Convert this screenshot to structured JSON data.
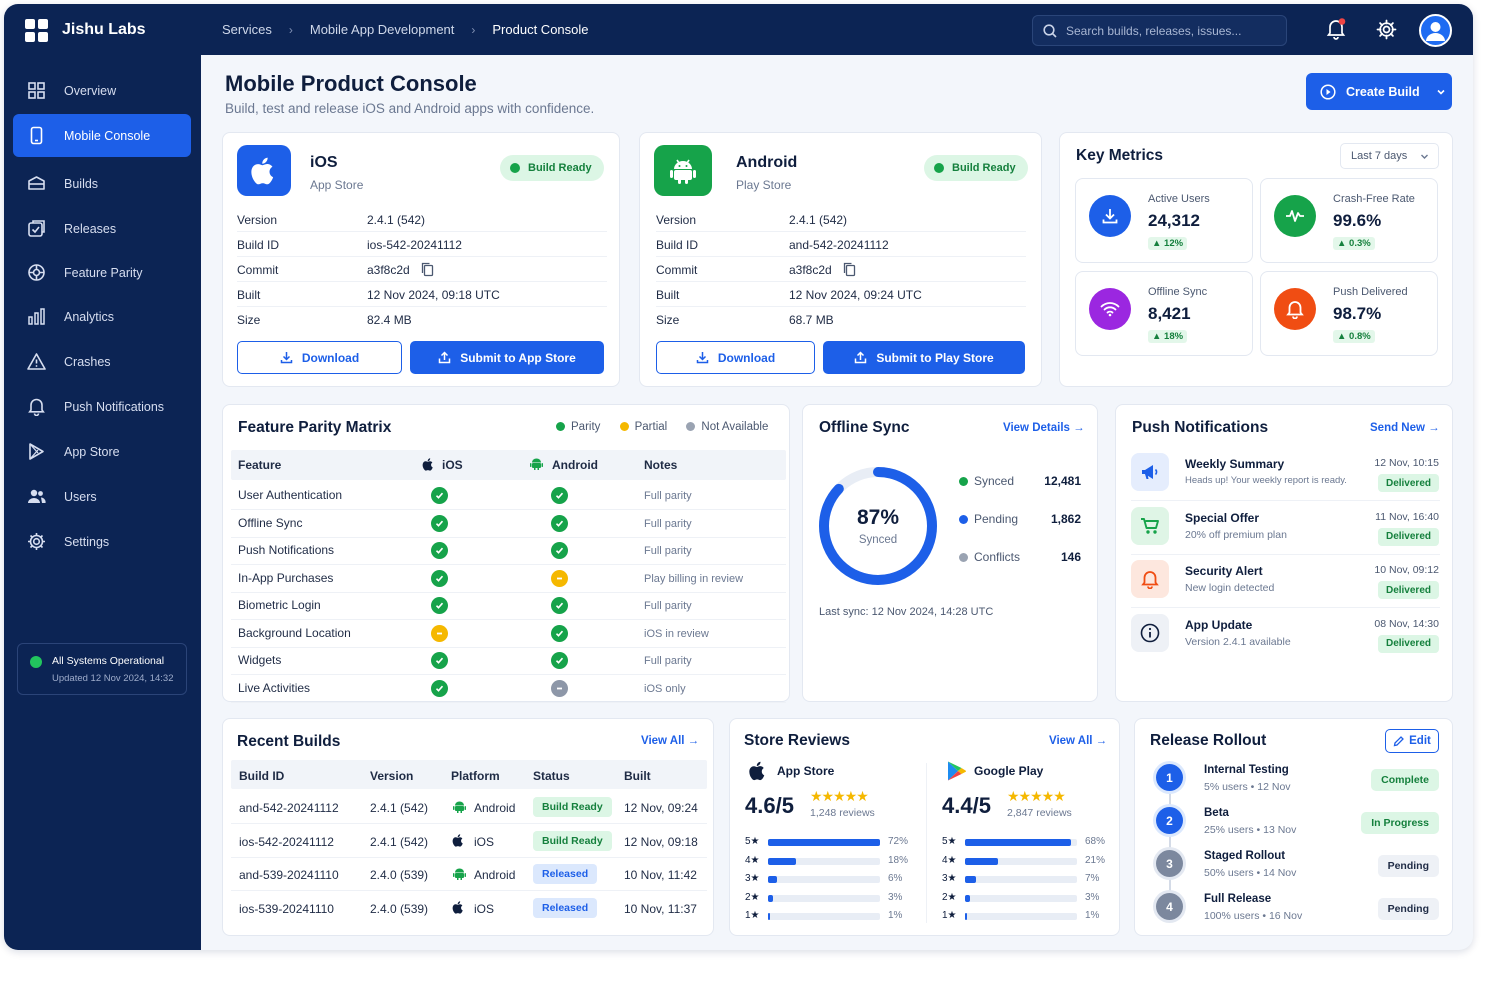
{
  "app": {
    "brand": "Jishu Labs"
  },
  "breadcrumb": [
    "Services",
    "Mobile App Development",
    "Product Console"
  ],
  "search": {
    "placeholder": "Search builds, releases, issues..."
  },
  "sidebar": {
    "items": [
      {
        "label": "Overview",
        "icon": "grid-icon"
      },
      {
        "label": "Mobile Console",
        "icon": "phone-icon",
        "active": true
      },
      {
        "label": "Builds",
        "icon": "box-icon"
      },
      {
        "label": "Releases",
        "icon": "release-icon"
      },
      {
        "label": "Feature Parity",
        "icon": "parity-icon"
      },
      {
        "label": "Analytics",
        "icon": "bar-chart-icon"
      },
      {
        "label": "Crashes",
        "icon": "warning-icon"
      },
      {
        "label": "Push Notifications",
        "icon": "bell-icon"
      },
      {
        "label": "App Store",
        "icon": "play-icon"
      },
      {
        "label": "Users",
        "icon": "users-icon"
      },
      {
        "label": "Settings",
        "icon": "gear-icon"
      }
    ],
    "status": {
      "title": "All Systems Operational",
      "updated": "Updated 12 Nov 2024, 14:32"
    }
  },
  "page": {
    "title": "Mobile Product Console",
    "subtitle": "Build, test and release iOS and Android apps with confidence.",
    "create_label": "Create Build"
  },
  "ios": {
    "name": "iOS",
    "store": "App Store",
    "badge": "Build Ready",
    "rows": [
      {
        "k": "Version",
        "v": "2.4.1 (542)"
      },
      {
        "k": "Build ID",
        "v": "ios-542-20241112"
      },
      {
        "k": "Commit",
        "v": "a3f8c2d"
      },
      {
        "k": "Built",
        "v": "12 Nov 2024, 09:18 UTC"
      },
      {
        "k": "Size",
        "v": "82.4 MB"
      }
    ],
    "download": "Download",
    "submit": "Submit to App Store"
  },
  "android": {
    "name": "Android",
    "store": "Play Store",
    "badge": "Build Ready",
    "rows": [
      {
        "k": "Version",
        "v": "2.4.1 (542)"
      },
      {
        "k": "Build ID",
        "v": "and-542-20241112"
      },
      {
        "k": "Commit",
        "v": "a3f8c2d"
      },
      {
        "k": "Built",
        "v": "12 Nov 2024, 09:24 UTC"
      },
      {
        "k": "Size",
        "v": "68.7 MB"
      }
    ],
    "download": "Download",
    "submit": "Submit to Play Store"
  },
  "metrics": {
    "title": "Key Metrics",
    "range": "Last 7 days",
    "items": [
      {
        "label": "Active Users",
        "value": "24,312",
        "delta": "12%",
        "color": "#1d5fe8",
        "icon": "download-icon"
      },
      {
        "label": "Crash-Free Rate",
        "value": "99.6%",
        "delta": "0.3%",
        "color": "#16a34a",
        "icon": "pulse-icon"
      },
      {
        "label": "Offline Sync",
        "value": "8,421",
        "delta": "18%",
        "color": "#9b27e0",
        "icon": "wifi-icon"
      },
      {
        "label": "Push Delivered",
        "value": "98.7%",
        "delta": "0.8%",
        "color": "#f04d13",
        "icon": "bell-icon"
      }
    ]
  },
  "parity": {
    "title": "Feature Parity Matrix",
    "legend": [
      "Parity",
      "Partial",
      "Not Available"
    ],
    "headers": [
      "Feature",
      "iOS",
      "Android",
      "Notes"
    ],
    "rows": [
      {
        "feature": "User Authentication",
        "ios": "ok",
        "android": "ok",
        "note": "Full parity"
      },
      {
        "feature": "Offline Sync",
        "ios": "ok",
        "android": "ok",
        "note": "Full parity"
      },
      {
        "feature": "Push Notifications",
        "ios": "ok",
        "android": "ok",
        "note": "Full parity"
      },
      {
        "feature": "In-App Purchases",
        "ios": "ok",
        "android": "pt",
        "note": "Play billing in review"
      },
      {
        "feature": "Biometric Login",
        "ios": "ok",
        "android": "ok",
        "note": "Full parity"
      },
      {
        "feature": "Background Location",
        "ios": "pt",
        "android": "ok",
        "note": "iOS in review"
      },
      {
        "feature": "Widgets",
        "ios": "ok",
        "android": "ok",
        "note": "Full parity"
      },
      {
        "feature": "Live Activities",
        "ios": "ok",
        "android": "na",
        "note": "iOS only"
      }
    ]
  },
  "offline": {
    "title": "Offline Sync",
    "link": "View Details",
    "percent": "87%",
    "percent_value": 0.87,
    "percent_label": "Synced",
    "stats": [
      {
        "label": "Synced",
        "value": "12,481",
        "color": "#16a34a"
      },
      {
        "label": "Pending",
        "value": "1,862",
        "color": "#1d5fe8"
      },
      {
        "label": "Conflicts",
        "value": "146",
        "color": "#9aa3b2"
      }
    ],
    "last_sync": "Last sync: 12 Nov 2024, 14:28 UTC"
  },
  "push": {
    "title": "Push Notifications",
    "link": "Send New",
    "items": [
      {
        "title": "Weekly Summary",
        "desc": "Heads up! Your weekly report is ready.",
        "time": "12 Nov, 10:15",
        "status": "Delivered",
        "icon": "megaphone-icon"
      },
      {
        "title": "Special Offer",
        "desc": "20% off premium plan",
        "time": "11 Nov, 16:40",
        "status": "Delivered",
        "icon": "cart-icon"
      },
      {
        "title": "Security Alert",
        "desc": "New login detected",
        "time": "10 Nov, 09:12",
        "status": "Delivered",
        "icon": "bell-icon"
      },
      {
        "title": "App Update",
        "desc": "Version 2.4.1 available",
        "time": "08 Nov, 14:30",
        "status": "Delivered",
        "icon": "info-icon"
      }
    ]
  },
  "builds": {
    "title": "Recent Builds",
    "link": "View All",
    "headers": [
      "Build ID",
      "Version",
      "Platform",
      "Status",
      "Built"
    ],
    "rows": [
      {
        "id": "and-542-20241112",
        "version": "2.4.1 (542)",
        "platform": "Android",
        "status": "Build Ready",
        "built": "12 Nov, 09:24"
      },
      {
        "id": "ios-542-20241112",
        "version": "2.4.1 (542)",
        "platform": "iOS",
        "status": "Build Ready",
        "built": "12 Nov, 09:18"
      },
      {
        "id": "and-539-20241110",
        "version": "2.4.0 (539)",
        "platform": "Android",
        "status": "Released",
        "built": "10 Nov, 11:42"
      },
      {
        "id": "ios-539-20241110",
        "version": "2.4.0 (539)",
        "platform": "iOS",
        "status": "Released",
        "built": "10 Nov, 11:37"
      }
    ]
  },
  "reviews": {
    "title": "Store Reviews",
    "link": "View All",
    "stores": [
      {
        "name": "App Store",
        "rating": "4.6/5",
        "reviews": "1,248 reviews",
        "dist": [
          {
            "star": "5★",
            "pct": "72%",
            "v": 72
          },
          {
            "star": "4★",
            "pct": "18%",
            "v": 18
          },
          {
            "star": "3★",
            "pct": "6%",
            "v": 6
          },
          {
            "star": "2★",
            "pct": "3%",
            "v": 3
          },
          {
            "star": "1★",
            "pct": "1%",
            "v": 1
          }
        ]
      },
      {
        "name": "Google Play",
        "rating": "4.4/5",
        "reviews": "2,847 reviews",
        "dist": [
          {
            "star": "5★",
            "pct": "68%",
            "v": 68
          },
          {
            "star": "4★",
            "pct": "21%",
            "v": 21
          },
          {
            "star": "3★",
            "pct": "7%",
            "v": 7
          },
          {
            "star": "2★",
            "pct": "3%",
            "v": 3
          },
          {
            "star": "1★",
            "pct": "1%",
            "v": 1
          }
        ]
      }
    ]
  },
  "rollout": {
    "title": "Release Rollout",
    "edit": "Edit",
    "steps": [
      {
        "n": "1",
        "name": "Internal Testing",
        "meta": "5% users • 12 Nov",
        "status": "Complete"
      },
      {
        "n": "2",
        "name": "Beta",
        "meta": "25% users • 13 Nov",
        "status": "In Progress"
      },
      {
        "n": "3",
        "name": "Staged Rollout",
        "meta": "50% users • 14 Nov",
        "status": "Pending"
      },
      {
        "n": "4",
        "name": "Full Release",
        "meta": "100% users • 16 Nov",
        "status": "Pending"
      }
    ]
  }
}
